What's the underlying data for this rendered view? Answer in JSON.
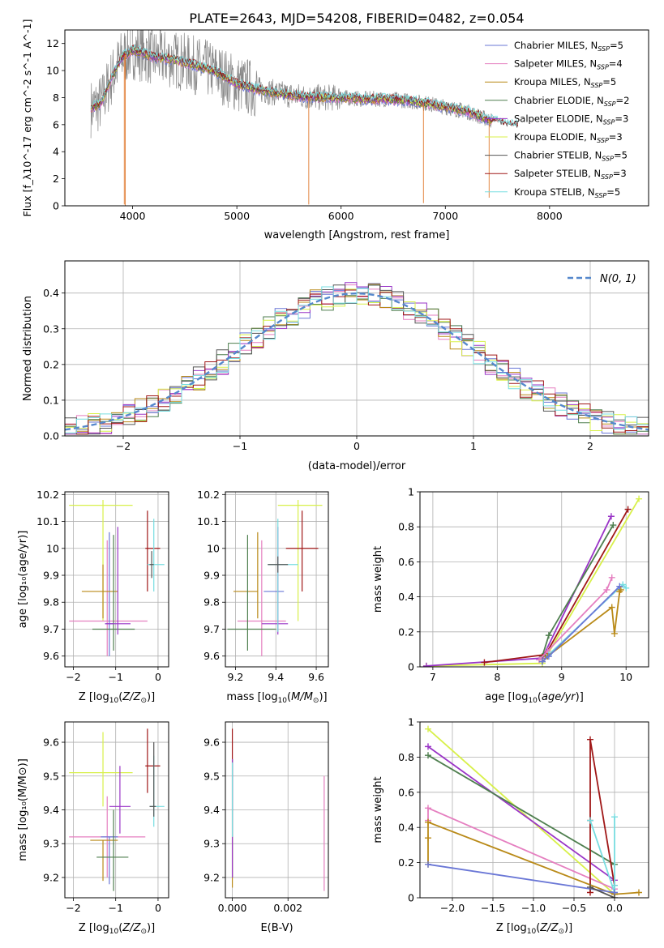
{
  "figure_title": "PLATE=2643, MJD=54208, FIBERID=0482, z=0.054",
  "colors": {
    "chabrier_miles": "#6a77d6",
    "salpeter_miles": "#e57fc0",
    "kroupa_miles": "#b98a18",
    "chabrier_elodie": "#4f7f4f",
    "salpeter_elodie": "#9a35c7",
    "kroupa_elodie": "#d8f04a",
    "chabrier_stelib": "#555555",
    "salpeter_stelib": "#a01818",
    "kroupa_stelib": "#77dde0",
    "orange": "#e07a30",
    "normal": "#5588cc",
    "grid": "#b0b0b0"
  },
  "chart_data": [
    {
      "type": "line",
      "id": "spectrum",
      "xlabel": "wavelength [Angstrom, rest frame]",
      "ylabel": "Flux [f_λ10^-17 erg cm^-2 s^-1 A^-1]",
      "xlim": [
        3350,
        8950
      ],
      "ylim": [
        0,
        13
      ],
      "xticks": [
        4000,
        5000,
        6000,
        7000,
        8000
      ],
      "yticks": [
        0,
        2,
        4,
        6,
        8,
        10,
        12
      ],
      "grid": false,
      "legend_position": "upper-right",
      "series": [
        {
          "name": "Chabrier MILES, N_SSP=5",
          "legend": [
            "Chabrier MILES, N",
            "SSP",
            "=5"
          ],
          "color_key": "chabrier_miles"
        },
        {
          "name": "Salpeter MILES, N_SSP=4",
          "legend": [
            "Salpeter MILES, N",
            "SSP",
            "=4"
          ],
          "color_key": "salpeter_miles"
        },
        {
          "name": "Kroupa MILES, N_SSP=5",
          "legend": [
            "Kroupa MILES, N",
            "SSP",
            "=5"
          ],
          "color_key": "kroupa_miles"
        },
        {
          "name": "Chabrier ELODIE, N_SSP=2",
          "legend": [
            "Chabrier ELODIE, N",
            "SSP",
            "=2"
          ],
          "color_key": "chabrier_elodie"
        },
        {
          "name": "Salpeter ELODIE, N_SSP=3",
          "legend": [
            "Salpeter ELODIE, N",
            "SSP",
            "=3"
          ],
          "color_key": "salpeter_elodie"
        },
        {
          "name": "Kroupa ELODIE, N_SSP=3",
          "legend": [
            "Kroupa ELODIE, N",
            "SSP",
            "=3"
          ],
          "color_key": "kroupa_elodie"
        },
        {
          "name": "Chabrier STELIB, N_SSP=5",
          "legend": [
            "Chabrier STELIB, N",
            "SSP",
            "=5"
          ],
          "color_key": "chabrier_stelib"
        },
        {
          "name": "Salpeter STELIB, N_SSP=3",
          "legend": [
            "Salpeter STELIB, N",
            "SSP",
            "=3"
          ],
          "color_key": "salpeter_stelib"
        },
        {
          "name": "Kroupa STELIB, N_SSP=5",
          "legend": [
            "Kroupa STELIB, N",
            "SSP",
            "=5"
          ],
          "color_key": "kroupa_stelib"
        }
      ],
      "continuum": [
        [
          3600,
          7.2
        ],
        [
          3700,
          7.6
        ],
        [
          3800,
          9.5
        ],
        [
          3900,
          11.0
        ],
        [
          4000,
          11.5
        ],
        [
          4100,
          11.3
        ],
        [
          4200,
          11.0
        ],
        [
          4400,
          10.8
        ],
        [
          4600,
          10.4
        ],
        [
          4800,
          9.9
        ],
        [
          5000,
          9.0
        ],
        [
          5200,
          8.6
        ],
        [
          5400,
          8.3
        ],
        [
          5600,
          8.1
        ],
        [
          5800,
          8.0
        ],
        [
          6000,
          8.0
        ],
        [
          6200,
          7.9
        ],
        [
          6400,
          7.9
        ],
        [
          6600,
          7.8
        ],
        [
          6800,
          7.6
        ],
        [
          7000,
          7.3
        ],
        [
          7200,
          7.0
        ],
        [
          7400,
          6.4
        ],
        [
          7600,
          6.0
        ],
        [
          7800,
          5.8
        ],
        [
          8000,
          5.6
        ]
      ],
      "data_spikes_down": [
        [
          3920,
          0.1
        ],
        [
          3930,
          0.0
        ],
        [
          5690,
          0.1
        ],
        [
          6790,
          0.2
        ],
        [
          7420,
          0.6
        ]
      ]
    },
    {
      "type": "line",
      "id": "residuals",
      "xlabel": "(data-model)/error",
      "ylabel": "Normed distribution",
      "xlim": [
        -2.5,
        2.5
      ],
      "ylim": [
        0,
        0.49
      ],
      "xticks": [
        -2,
        -1,
        0,
        1,
        2
      ],
      "yticks": [
        0.0,
        0.1,
        0.2,
        0.3,
        0.4
      ],
      "grid": true,
      "legend_position": "upper-right",
      "legend_label": "N(0, 1)",
      "distribution": "normal",
      "mean": 0,
      "sigma": 1
    },
    {
      "type": "scatter",
      "id": "age_vs_Z",
      "xlabel": "Z [log10(Z/Z_sun)]",
      "ylabel": "age [log10(age/yr)]",
      "xlim": [
        -2.2,
        0.25
      ],
      "ylim": [
        9.56,
        10.21
      ],
      "xticks": [
        -2,
        -1,
        0
      ],
      "yticks": [
        9.6,
        9.7,
        9.8,
        9.9,
        10.0,
        10.1,
        10.2
      ],
      "grid": true,
      "errorbars": [
        {
          "color_key": "kroupa_elodie",
          "x": -1.3,
          "xerr": [
            0.8,
            0.7
          ],
          "y": 10.16,
          "yerr": [
            0.43,
            0.02
          ]
        },
        {
          "color_key": "salpeter_miles",
          "x": -1.2,
          "xerr": [
            0.9,
            0.95
          ],
          "y": 9.73,
          "yerr": [
            0.13,
            0.3
          ]
        },
        {
          "color_key": "chabrier_miles",
          "x": -1.15,
          "xerr": [
            0.1,
            0.1
          ],
          "y": 9.72,
          "yerr": [
            0.12,
            0.34
          ]
        },
        {
          "color_key": "kroupa_miles",
          "x": -1.3,
          "xerr": [
            0.5,
            0.35
          ],
          "y": 9.84,
          "yerr": [
            0.1,
            0.1
          ]
        },
        {
          "color_key": "chabrier_elodie",
          "x": -1.05,
          "xerr": [
            0.5,
            0.5
          ],
          "y": 9.7,
          "yerr": [
            0.08,
            0.35
          ]
        },
        {
          "color_key": "salpeter_elodie",
          "x": -0.95,
          "xerr": [
            0.3,
            0.3
          ],
          "y": 9.72,
          "yerr": [
            0.04,
            0.36
          ]
        },
        {
          "color_key": "salpeter_stelib",
          "x": -0.25,
          "xerr": [
            0.05,
            0.3
          ],
          "y": 10.0,
          "yerr": [
            0.16,
            0.14
          ]
        },
        {
          "color_key": "kroupa_stelib",
          "x": -0.1,
          "xerr": [
            0.15,
            0.25
          ],
          "y": 9.94,
          "yerr": [
            0.1,
            0.17
          ]
        },
        {
          "color_key": "chabrier_stelib",
          "x": -0.15,
          "xerr": [
            0.05,
            0.05
          ],
          "y": 9.94,
          "yerr": [
            0.05,
            0.05
          ]
        }
      ]
    },
    {
      "type": "scatter",
      "id": "age_vs_mass",
      "xlabel": "mass [log10(M/M_sun)]",
      "ylabel": "",
      "xlim": [
        9.15,
        9.66
      ],
      "ylim": [
        9.56,
        10.21
      ],
      "xticks": [
        9.2,
        9.4,
        9.6
      ],
      "yticks": [
        9.6,
        9.7,
        9.8,
        9.9,
        10.0,
        10.1,
        10.2
      ],
      "grid": true,
      "errorbars": [
        {
          "color_key": "kroupa_elodie",
          "x": 9.51,
          "xerr": [
            0.1,
            0.12
          ],
          "y": 10.16,
          "yerr": [
            0.43,
            0.02
          ]
        },
        {
          "color_key": "salpeter_miles",
          "x": 9.33,
          "xerr": [
            0.12,
            0.12
          ],
          "y": 9.73,
          "yerr": [
            0.13,
            0.3
          ]
        },
        {
          "color_key": "kroupa_miles",
          "x": 9.31,
          "xerr": [
            0.12,
            0.0
          ],
          "y": 9.84,
          "yerr": [
            0.1,
            0.22
          ]
        },
        {
          "color_key": "chabrier_miles",
          "x": 9.34,
          "xerr": [
            0.0,
            0.1
          ],
          "y": 9.84,
          "yerr": [
            0.0,
            0.0
          ]
        },
        {
          "color_key": "chabrier_elodie",
          "x": 9.26,
          "xerr": [
            0.1,
            0.14
          ],
          "y": 9.7,
          "yerr": [
            0.08,
            0.35
          ]
        },
        {
          "color_key": "salpeter_elodie",
          "x": 9.41,
          "xerr": [
            0.08,
            0.05
          ],
          "y": 9.72,
          "yerr": [
            0.04,
            0.36
          ]
        },
        {
          "color_key": "salpeter_stelib",
          "x": 9.53,
          "xerr": [
            0.08,
            0.08
          ],
          "y": 10.0,
          "yerr": [
            0.16,
            0.14
          ]
        },
        {
          "color_key": "kroupa_stelib",
          "x": 9.41,
          "xerr": [
            0.05,
            0.1
          ],
          "y": 9.94,
          "yerr": [
            0.25,
            0.17
          ]
        },
        {
          "color_key": "chabrier_stelib",
          "x": 9.41,
          "xerr": [
            0.05,
            0.05
          ],
          "y": 9.94,
          "yerr": [
            0.03,
            0.03
          ]
        }
      ]
    },
    {
      "type": "line",
      "id": "massweight_vs_age",
      "xlabel": "age [log10(age/yr)]",
      "ylabel": "mass weight",
      "xlim": [
        6.8,
        10.35
      ],
      "ylim": [
        0,
        1.0
      ],
      "xticks": [
        7,
        8,
        9,
        10
      ],
      "yticks": [
        0.0,
        0.2,
        0.4,
        0.6,
        0.8,
        1.0
      ],
      "grid": true,
      "series": [
        {
          "color_key": "kroupa_elodie",
          "x": [
            6.9,
            8.7,
            10.2
          ],
          "y": [
            0.005,
            0.02,
            0.96
          ]
        },
        {
          "color_key": "salpeter_elodie",
          "x": [
            6.9,
            8.7,
            9.77
          ],
          "y": [
            0.005,
            0.05,
            0.86
          ]
        },
        {
          "color_key": "chabrier_elodie",
          "x": [
            8.7,
            8.8,
            9.8
          ],
          "y": [
            0.06,
            0.18,
            0.81
          ]
        },
        {
          "color_key": "salpeter_stelib",
          "x": [
            7.8,
            8.75,
            10.03
          ],
          "y": [
            0.025,
            0.07,
            0.9
          ]
        },
        {
          "color_key": "salpeter_miles",
          "x": [
            8.65,
            8.78,
            9.7,
            9.78
          ],
          "y": [
            0.04,
            0.09,
            0.44,
            0.51
          ]
        },
        {
          "color_key": "kroupa_stelib",
          "x": [
            8.7,
            8.8,
            9.95,
            10.0
          ],
          "y": [
            0.03,
            0.07,
            0.47,
            0.45
          ]
        },
        {
          "color_key": "kroupa_miles",
          "x": [
            8.7,
            8.78,
            9.78,
            9.82,
            9.9,
            9.92
          ],
          "y": [
            0.03,
            0.06,
            0.34,
            0.19,
            0.43,
            0.44
          ]
        },
        {
          "color_key": "chabrier_miles",
          "x": [
            8.7,
            8.8,
            9.9
          ],
          "y": [
            0.03,
            0.06,
            0.46
          ]
        }
      ]
    },
    {
      "type": "scatter",
      "id": "mass_vs_Z",
      "xlabel": "Z [log10(Z/Z_sun)]",
      "ylabel": "mass [log10(M/M_sun)]",
      "xlim": [
        -2.2,
        0.25
      ],
      "ylim": [
        9.14,
        9.66
      ],
      "xticks": [
        -2,
        -1,
        0
      ],
      "yticks": [
        9.2,
        9.3,
        9.4,
        9.5,
        9.6
      ],
      "grid": true,
      "errorbars": [
        {
          "color_key": "kroupa_elodie",
          "x": -1.3,
          "xerr": [
            0.8,
            0.7
          ],
          "y": 9.51,
          "yerr": [
            0.1,
            0.12
          ]
        },
        {
          "color_key": "salpeter_miles",
          "x": -1.2,
          "xerr": [
            0.9,
            0.9
          ],
          "y": 9.32,
          "yerr": [
            0.12,
            0.12
          ]
        },
        {
          "color_key": "chabrier_miles",
          "x": -1.15,
          "xerr": [
            0.2,
            0.2
          ],
          "y": 9.32,
          "yerr": [
            0.14,
            0.0
          ]
        },
        {
          "color_key": "kroupa_miles",
          "x": -1.3,
          "xerr": [
            0.3,
            0.35
          ],
          "y": 9.31,
          "yerr": [
            0.12,
            0.0
          ]
        },
        {
          "color_key": "chabrier_elodie",
          "x": -1.05,
          "xerr": [
            0.4,
            0.35
          ],
          "y": 9.26,
          "yerr": [
            0.1,
            0.14
          ]
        },
        {
          "color_key": "salpeter_elodie",
          "x": -0.9,
          "xerr": [
            0.25,
            0.25
          ],
          "y": 9.41,
          "yerr": [
            0.08,
            0.12
          ]
        },
        {
          "color_key": "salpeter_stelib",
          "x": -0.25,
          "xerr": [
            0.05,
            0.3
          ],
          "y": 9.53,
          "yerr": [
            0.08,
            0.11
          ]
        },
        {
          "color_key": "kroupa_stelib",
          "x": -0.1,
          "xerr": [
            0.1,
            0.25
          ],
          "y": 9.41,
          "yerr": [
            0.06,
            0.15
          ]
        },
        {
          "color_key": "chabrier_stelib",
          "x": -0.1,
          "xerr": [
            0.1,
            0.05
          ],
          "y": 9.41,
          "yerr": [
            0.03,
            0.19
          ]
        }
      ]
    },
    {
      "type": "scatter",
      "id": "mass_vs_ebv",
      "xlabel": "E(B-V)",
      "ylabel": "",
      "xlim": [
        -0.00025,
        0.00345
      ],
      "ylim": [
        9.14,
        9.66
      ],
      "xticks": [
        0.0,
        0.002
      ],
      "xtick_labels": [
        "0.000",
        "0.002"
      ],
      "yticks": [
        9.2,
        9.3,
        9.4,
        9.5,
        9.6
      ],
      "grid": true,
      "errorbars": [
        {
          "color_key": "salpeter_stelib",
          "x": 0.0,
          "xerr": [
            0,
            0
          ],
          "y": 9.5,
          "yerr": [
            0.1,
            0.14
          ]
        },
        {
          "color_key": "kroupa_miles",
          "x": 0.0,
          "xerr": [
            0,
            0
          ],
          "y": 9.3,
          "yerr": [
            0.13,
            0.1
          ]
        },
        {
          "color_key": "chabrier_elodie",
          "x": 0.0,
          "xerr": [
            0,
            0
          ],
          "y": 9.4,
          "yerr": [
            0.2,
            0.15
          ]
        },
        {
          "color_key": "salpeter_elodie",
          "x": 0.0,
          "xerr": [
            0,
            0
          ],
          "y": 9.35,
          "yerr": [
            0.15,
            0.2
          ]
        },
        {
          "color_key": "kroupa_stelib",
          "x": 0.0,
          "xerr": [
            0,
            0
          ],
          "y": 9.42,
          "yerr": [
            0.1,
            0.12
          ]
        },
        {
          "color_key": "salpeter_miles",
          "x": 0.0033,
          "xerr": [
            0,
            0
          ],
          "y": 9.33,
          "yerr": [
            0.17,
            0.17
          ]
        }
      ]
    },
    {
      "type": "line",
      "id": "massweight_vs_Z",
      "xlabel": "Z [log10(Z/Z_sun)]",
      "ylabel": "mass weight",
      "xlim": [
        -2.4,
        0.42
      ],
      "ylim": [
        0,
        1.0
      ],
      "xticks": [
        -2.0,
        -1.5,
        -1.0,
        -0.5,
        0.0
      ],
      "xtick_labels": [
        "−2.0",
        "−1.5",
        "−1.0",
        "−0.5",
        "0.0"
      ],
      "yticks": [
        0.0,
        0.2,
        0.4,
        0.6,
        0.8,
        1.0
      ],
      "grid": true,
      "series": [
        {
          "color_key": "kroupa_elodie",
          "x": [
            -2.3,
            0.0
          ],
          "y": [
            0.96,
            0.02
          ]
        },
        {
          "color_key": "salpeter_elodie",
          "x": [
            -2.3,
            0.0
          ],
          "y": [
            0.86,
            0.1
          ]
        },
        {
          "color_key": "chabrier_elodie",
          "x": [
            -2.3,
            0.0
          ],
          "y": [
            0.81,
            0.19
          ]
        },
        {
          "color_key": "salpeter_miles",
          "x": [
            -2.3,
            -2.3,
            0.0
          ],
          "y": [
            0.44,
            0.51,
            0.05
          ]
        },
        {
          "color_key": "salpeter_stelib",
          "x": [
            -0.3,
            -0.3,
            -0.3,
            0.0
          ],
          "y": [
            0.03,
            0.44,
            0.9,
            0.07
          ]
        },
        {
          "color_key": "kroupa_stelib",
          "x": [
            -0.3,
            0.0,
            0.0,
            0.0
          ],
          "y": [
            0.44,
            0.03,
            0.07,
            0.46
          ]
        },
        {
          "color_key": "kroupa_miles",
          "x": [
            -2.3,
            -2.3,
            -2.3,
            0.0,
            0.3
          ],
          "y": [
            0.19,
            0.34,
            0.43,
            0.02,
            0.03
          ]
        },
        {
          "color_key": "chabrier_miles",
          "x": [
            -2.3,
            0.0
          ],
          "y": [
            0.19,
            0.03
          ]
        },
        {
          "color_key": "chabrier_stelib",
          "x": [
            -0.3,
            0.0
          ],
          "y": [
            0.06,
            0.0
          ]
        }
      ]
    }
  ]
}
